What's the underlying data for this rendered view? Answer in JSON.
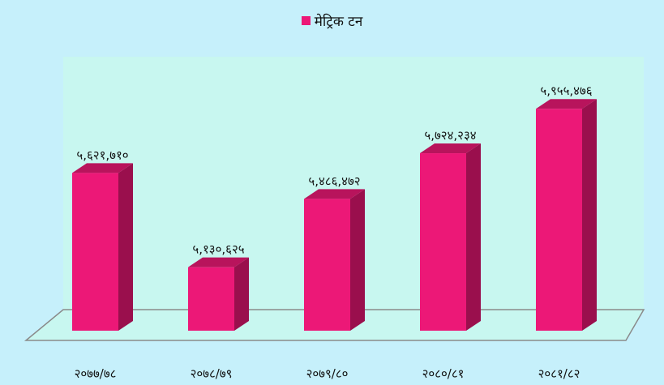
{
  "chart_data": {
    "type": "bar",
    "style": "3d",
    "categories": [
      "२०७७/७८",
      "२०७८/७९",
      "२०७९/८०",
      "२०८०/८१",
      "२०८१/८२"
    ],
    "series": [
      {
        "name": "मेट्रिक टन",
        "values": [
          5621710,
          5130625,
          5486472,
          5724234,
          5955476
        ],
        "labels": [
          "५,६२१,७१०",
          "५,१३०,६२५",
          "५,४८६,४७२",
          "५,७२४,२३४",
          "५,९५५,४७६"
        ]
      }
    ],
    "ylim": [
      4800000,
      6100000
    ],
    "legend_position": "top-center",
    "grid": false,
    "colors": {
      "bar_front": "#ec1877",
      "bar_top": "#b8145c",
      "bar_side": "#9a0f4d",
      "plot_back": "#c8f7f0",
      "background": "#c6f0fb",
      "floor_stroke": "#8a8a8a"
    }
  }
}
